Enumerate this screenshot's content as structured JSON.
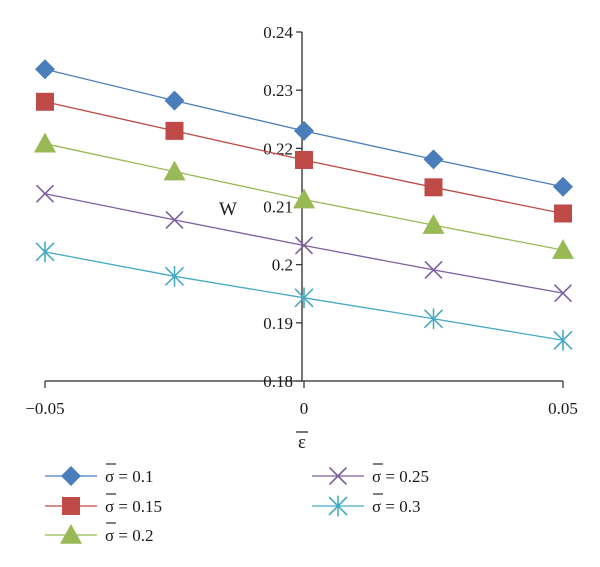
{
  "chart_data": {
    "type": "line",
    "xlabel": "ε",
    "ylabel": "W",
    "xlim": [
      -0.05,
      0.05
    ],
    "ylim": [
      0.18,
      0.24
    ],
    "x_ticks": [
      "−0.05",
      "0",
      "0.05"
    ],
    "x_tick_values": [
      -0.05,
      0,
      0.05
    ],
    "y_ticks": [
      "0.18",
      "0.19",
      "0.2",
      "0.21",
      "0.22",
      "0.23",
      "0.24"
    ],
    "y_tick_values": [
      0.18,
      0.19,
      0.2,
      0.21,
      0.22,
      0.23,
      0.24
    ],
    "grid": false,
    "legend_position": "bottom",
    "x": [
      -0.05,
      -0.025,
      0,
      0.025,
      0.05
    ],
    "series": [
      {
        "name": "σ = 0.1",
        "legend_value": "0.1",
        "marker": "diamond",
        "color": "#4a7ebb",
        "values": [
          0.2336,
          0.2282,
          0.223,
          0.2181,
          0.2134
        ]
      },
      {
        "name": "σ = 0.15",
        "legend_value": "0.15",
        "marker": "square",
        "color": "#be4b48",
        "values": [
          0.228,
          0.223,
          0.218,
          0.2133,
          0.2088
        ]
      },
      {
        "name": "σ = 0.2",
        "legend_value": "0.2",
        "marker": "triangle",
        "color": "#98b954",
        "values": [
          0.2208,
          0.216,
          0.2112,
          0.2068,
          0.2025
        ]
      },
      {
        "name": "σ = 0.25",
        "legend_value": "0.25",
        "marker": "x",
        "color": "#7d60a0",
        "values": [
          0.2122,
          0.2077,
          0.2033,
          0.1991,
          0.1951
        ]
      },
      {
        "name": "σ = 0.3",
        "legend_value": "0.3",
        "marker": "star",
        "color": "#46aac5",
        "values": [
          0.2022,
          0.198,
          0.1943,
          0.1907,
          0.187
        ]
      }
    ]
  }
}
